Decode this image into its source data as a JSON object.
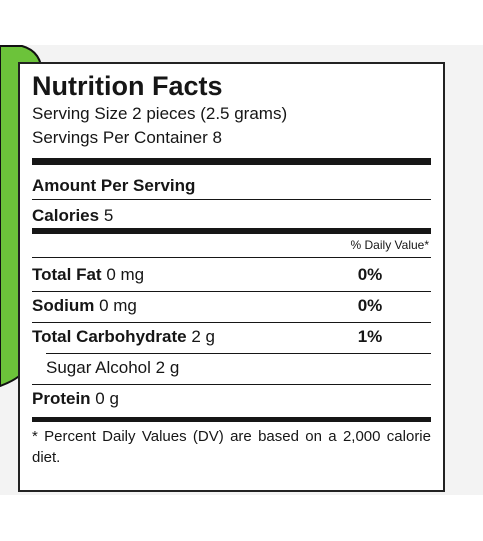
{
  "header": {
    "title": "Nutrition Facts",
    "serving_size": "Serving Size 2 pieces (2.5 grams)",
    "servings_per_container": "Servings Per Container 8",
    "amount_per_serving": "Amount Per Serving"
  },
  "calories": {
    "label": "Calories",
    "value": "5"
  },
  "dv_header": "% Daily Value*",
  "nutrients": [
    {
      "name": "Total Fat",
      "amount": "0 mg",
      "dv": "0%"
    },
    {
      "name": "Sodium",
      "amount": "0 mg",
      "dv": "0%"
    },
    {
      "name": "Total Carbohydrate",
      "amount": "2 g",
      "dv": "1%"
    },
    {
      "name": "Sugar Alcohol",
      "amount": "2 g",
      "sub": true
    },
    {
      "name": "Protein",
      "amount": "0 g"
    }
  ],
  "footnote": "* Percent Daily Values (DV) are based on a 2,000 calorie diet."
}
